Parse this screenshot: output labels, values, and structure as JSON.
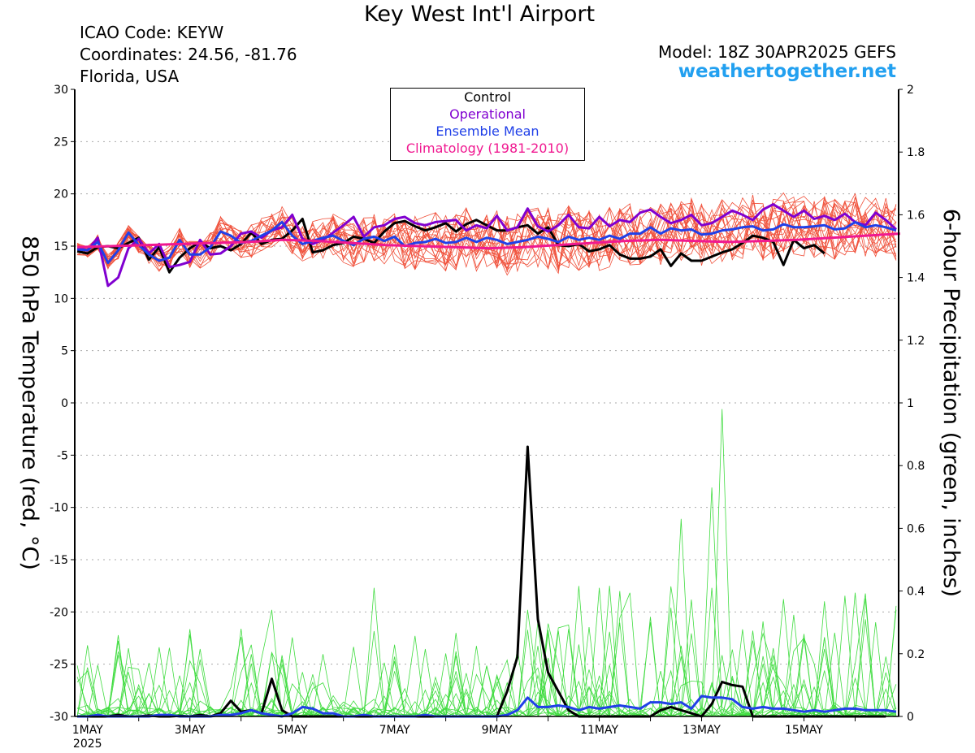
{
  "header": {
    "title": "Key West Int'l Airport",
    "icao": "ICAO Code: KEYW",
    "coordinates": "Coordinates: 24.56, -81.76",
    "region": "Florida, USA",
    "model": "Model: 18Z 30APR2025 GEFS",
    "site": "weathertogether.net"
  },
  "legend": {
    "items": [
      {
        "label": "Control",
        "color": "#000000"
      },
      {
        "label": "Operational",
        "color": "#8000d0"
      },
      {
        "label": "Ensemble Mean",
        "color": "#2040e8"
      },
      {
        "label": "Climatology (1981-2010)",
        "color": "#f01890"
      }
    ]
  },
  "chart_data": {
    "type": "line",
    "title": "Key West Int'l Airport",
    "ylabel": "850 hPa Temperature (red, °C)",
    "y2label": "6-hour Precipitation (green, inches)",
    "ylim": [
      -30,
      30
    ],
    "y2lim": [
      0,
      2
    ],
    "yticks": [
      30,
      25,
      20,
      15,
      10,
      5,
      0,
      -5,
      -10,
      -15,
      -20,
      -25,
      -30
    ],
    "y2ticks": [
      "2",
      "1.8",
      "1.6",
      "1.4",
      "1.2",
      "1",
      "0.8",
      "0.6",
      "0.4",
      "0.2",
      "0"
    ],
    "xlabels": [
      {
        "label": "1MAY",
        "sub": "2025",
        "day": 0
      },
      {
        "label": "3MAY",
        "day": 2
      },
      {
        "label": "5MAY",
        "day": 4
      },
      {
        "label": "7MAY",
        "day": 6
      },
      {
        "label": "9MAY",
        "day": 8
      },
      {
        "label": "11MAY",
        "day": 10
      },
      {
        "label": "13MAY",
        "day": 12
      },
      {
        "label": "15MAY",
        "day": 14
      }
    ],
    "x_unit": "days from 00Z 1MAY 2025 (6-hourly steps)",
    "xlim": [
      -0.25,
      15.85
    ],
    "grid": true,
    "series": [
      {
        "name": "Control",
        "kind": "temperature",
        "color": "#000000",
        "values": [
          14.5,
          14.3,
          14.9,
          15.0,
          14.8,
          15.3,
          15.8,
          13.7,
          14.9,
          12.5,
          13.9,
          14.8,
          15.4,
          14.8,
          15.0,
          14.6,
          15.2,
          16.3,
          15.2,
          15.6,
          15.7,
          16.5,
          17.6,
          14.4,
          14.6,
          15.1,
          15.3,
          15.9,
          15.7,
          15.3,
          16.4,
          17.2,
          17.4,
          16.9,
          16.5,
          16.8,
          17.2,
          16.4,
          17.1,
          17.5,
          17.0,
          16.5,
          16.5,
          16.8,
          17.0,
          16.2,
          16.8,
          15.1,
          15.0,
          15.2,
          14.5,
          14.7,
          15.1,
          14.2,
          13.8,
          13.8,
          14.0,
          14.7,
          13.1,
          14.3,
          13.6,
          13.6,
          14.0,
          14.4,
          14.7,
          15.3,
          16.0,
          15.8,
          15.4,
          13.2,
          15.6,
          14.8,
          15.1,
          14.3
        ]
      },
      {
        "name": "Operational",
        "kind": "temperature",
        "color": "#8000d0",
        "values": [
          14.8,
          14.6,
          15.8,
          11.2,
          12.0,
          14.8,
          15.7,
          14.3,
          15.2,
          13.0,
          13.2,
          13.5,
          15.6,
          14.2,
          14.3,
          15.0,
          16.2,
          16.4,
          15.8,
          16.5,
          16.8,
          18.0,
          15.7,
          15.2,
          15.6,
          16.3,
          17.0,
          17.8,
          15.9,
          16.8,
          17.0,
          17.6,
          17.8,
          17.2,
          17.0,
          17.3,
          17.4,
          17.5,
          16.5,
          17.0,
          16.7,
          17.9,
          16.5,
          16.8,
          18.6,
          16.9,
          16.4,
          17.0,
          18.0,
          16.8,
          16.7,
          17.8,
          16.9,
          17.5,
          17.3,
          18.2,
          18.5,
          17.8,
          17.2,
          17.5,
          18.0,
          17.0,
          17.2,
          17.8,
          18.4,
          18.0,
          17.5,
          18.5,
          19.0,
          18.4,
          17.8,
          18.4,
          17.6,
          17.9,
          17.5,
          18.1,
          17.3,
          17.0,
          18.2,
          17.5,
          16.6
        ]
      },
      {
        "name": "Ensemble Mean",
        "kind": "temperature",
        "color": "#2040e8",
        "values": [
          14.7,
          14.6,
          15.4,
          13.4,
          14.6,
          16.3,
          15.1,
          14.2,
          13.6,
          13.9,
          15.6,
          14.2,
          14.2,
          14.9,
          16.4,
          16.0,
          15.3,
          15.5,
          16.0,
          16.5,
          17.3,
          16.0,
          15.2,
          15.5,
          15.8,
          16.0,
          15.5,
          15.1,
          15.7,
          15.9,
          15.5,
          15.9,
          15.0,
          15.3,
          15.4,
          15.7,
          15.3,
          15.4,
          15.8,
          15.4,
          15.8,
          15.6,
          15.2,
          15.4,
          15.6,
          15.9,
          15.7,
          15.4,
          15.9,
          15.6,
          15.8,
          15.6,
          16.0,
          15.7,
          16.2,
          16.2,
          16.8,
          16.2,
          16.7,
          16.5,
          16.6,
          16.1,
          16.2,
          16.5,
          16.6,
          16.8,
          16.9,
          16.5,
          16.6,
          17.1,
          16.8,
          16.8,
          16.9,
          17.0,
          16.6,
          16.7,
          17.3,
          16.8,
          17.0,
          16.8,
          16.5
        ]
      },
      {
        "name": "Climatology (1981-2010)",
        "kind": "temperature",
        "color": "#f01890",
        "values": [
          14.9,
          15.0,
          15.1,
          15.2,
          15.3,
          15.4,
          15.6,
          15.5,
          15.3,
          15.1,
          15.0,
          14.9,
          14.8,
          14.9,
          15.1,
          15.3,
          15.5,
          15.6,
          15.5,
          15.4,
          15.5,
          15.6,
          15.8,
          16.0,
          16.2
        ]
      },
      {
        "name": "Control",
        "kind": "precipitation",
        "color": "#000000",
        "values": [
          0,
          0,
          0,
          0,
          0.005,
          0,
          0,
          0.003,
          0,
          0,
          0.002,
          0,
          0.005,
          0,
          0.01,
          0.05,
          0.015,
          0.02,
          0.01,
          0.12,
          0.02,
          0,
          0,
          0,
          0,
          0,
          0,
          0,
          0,
          0,
          0,
          0,
          0,
          0,
          0,
          0,
          0,
          0,
          0,
          0,
          0,
          0,
          0.08,
          0.19,
          0.86,
          0.31,
          0.14,
          0.08,
          0.02,
          0,
          0,
          0,
          0,
          0,
          0,
          0,
          0,
          0.02,
          0.03,
          0.02,
          0.01,
          0,
          0.04,
          0.11,
          0.1,
          0.095,
          0,
          0,
          0,
          0,
          0,
          0,
          0,
          0,
          0,
          0,
          0,
          0,
          0,
          0
        ]
      },
      {
        "name": "Ensemble Mean",
        "kind": "precipitation",
        "color": "#2040e8",
        "values": [
          0,
          0,
          0.005,
          0,
          0,
          0,
          0,
          0,
          0.005,
          0.005,
          0,
          0,
          0,
          0,
          0.005,
          0.005,
          0.01,
          0.02,
          0.01,
          0.005,
          0,
          0.01,
          0.03,
          0.025,
          0.01,
          0.01,
          0,
          0,
          0.005,
          0,
          0,
          0,
          0,
          0,
          0.005,
          0,
          0,
          0,
          0,
          0,
          0,
          0,
          0.005,
          0.02,
          0.06,
          0.03,
          0.03,
          0.035,
          0.03,
          0.02,
          0.03,
          0.025,
          0.03,
          0.035,
          0.03,
          0.025,
          0.045,
          0.045,
          0.04,
          0.045,
          0.025,
          0.065,
          0.06,
          0.06,
          0.055,
          0.03,
          0.025,
          0.03,
          0.025,
          0.025,
          0.02,
          0.015,
          0.02,
          0.015,
          0.02,
          0.025,
          0.025,
          0.02,
          0.02,
          0.02,
          0.015
        ]
      }
    ],
    "ensemble_members": 20,
    "ensemble_temperature_range": [
      10.8,
      20.6
    ],
    "ensemble_precipitation_max": 0.98
  }
}
